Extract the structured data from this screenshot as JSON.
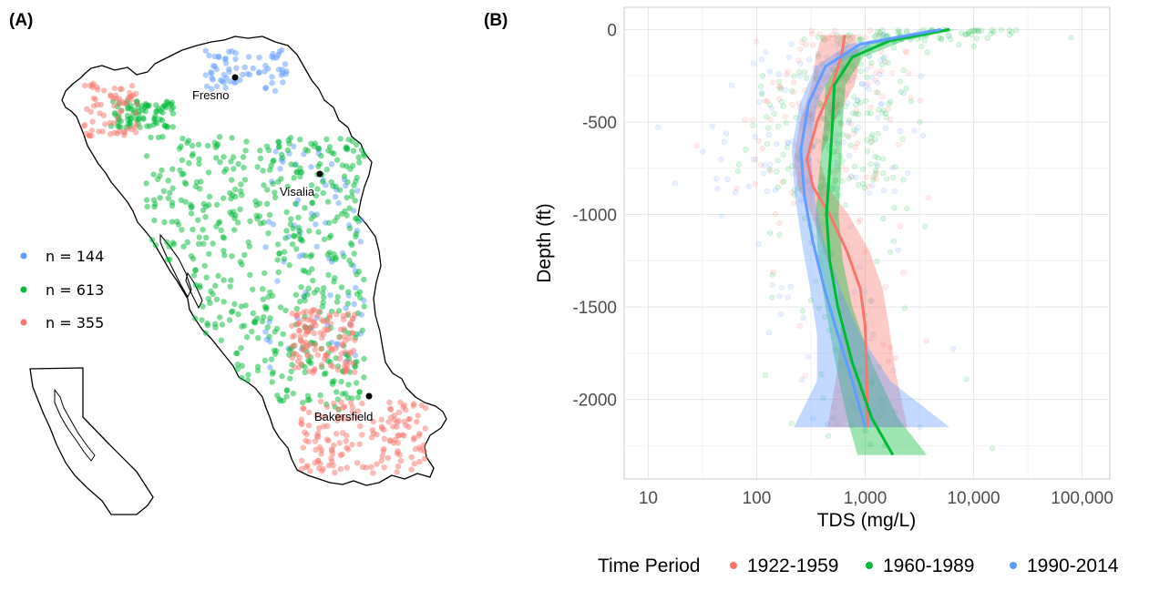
{
  "chart_data": [
    {
      "type": "scatter",
      "panel_label": "(A)",
      "cities": [
        "Fresno",
        "Visalia",
        "Bakersfield"
      ],
      "legend": {
        "placement": "left",
        "entries": [
          {
            "label": "n = 144",
            "color": "#619CFF"
          },
          {
            "label": "n = 613",
            "color": "#00BA38"
          },
          {
            "label": "n = 355",
            "color": "#F8766D"
          }
        ]
      },
      "inset": "California outline"
    },
    {
      "type": "scatter",
      "panel_label": "(B)",
      "xlabel": "TDS (mg/L)",
      "ylabel": "Depth (ft)",
      "x_scale": "log10",
      "xlim": [
        6,
        180000
      ],
      "ylim": [
        -2430,
        120
      ],
      "x_ticks": [
        10,
        100,
        1000,
        10000,
        100000
      ],
      "x_tick_labels": [
        "10",
        "100",
        "1,000",
        "10,000",
        "100,000"
      ],
      "y_ticks": [
        0,
        -500,
        -1000,
        -1500,
        -2000
      ],
      "y_tick_labels": [
        "0",
        "-500",
        "-1000",
        "-1500",
        "-2000"
      ],
      "grid": true,
      "legend": {
        "title": "Time Period",
        "placement": "bottom"
      },
      "series": [
        {
          "name": "1922-1959",
          "color": "#F8766D",
          "trend": [
            {
              "depth": -30,
              "tds": 650,
              "lo": 400,
              "hi": 800
            },
            {
              "depth": -150,
              "tds": 600,
              "lo": 350,
              "hi": 900
            },
            {
              "depth": -300,
              "tds": 500,
              "lo": 320,
              "hi": 800
            },
            {
              "depth": -500,
              "tds": 360,
              "lo": 250,
              "hi": 520
            },
            {
              "depth": -700,
              "tds": 290,
              "lo": 220,
              "hi": 380
            },
            {
              "depth": -850,
              "tds": 330,
              "lo": 240,
              "hi": 450
            },
            {
              "depth": -1000,
              "tds": 470,
              "lo": 320,
              "hi": 700
            },
            {
              "depth": -1200,
              "tds": 680,
              "lo": 420,
              "hi": 1100
            },
            {
              "depth": -1400,
              "tds": 900,
              "lo": 560,
              "hi": 1450
            },
            {
              "depth": -1600,
              "tds": 1000,
              "lo": 600,
              "hi": 1650
            },
            {
              "depth": -1850,
              "tds": 1030,
              "lo": 550,
              "hi": 1900
            },
            {
              "depth": -2150,
              "tds": 1060,
              "lo": 450,
              "hi": 2450
            }
          ]
        },
        {
          "name": "1960-1989",
          "color": "#00BA38",
          "trend": [
            {
              "depth": 0,
              "tds": 6000,
              "lo": 5000,
              "hi": 7000
            },
            {
              "depth": -60,
              "tds": 1700,
              "lo": 1200,
              "hi": 2300
            },
            {
              "depth": -150,
              "tds": 760,
              "lo": 600,
              "hi": 960
            },
            {
              "depth": -300,
              "tds": 520,
              "lo": 430,
              "hi": 660
            },
            {
              "depth": -500,
              "tds": 500,
              "lo": 420,
              "hi": 620
            },
            {
              "depth": -750,
              "tds": 470,
              "lo": 380,
              "hi": 600
            },
            {
              "depth": -1000,
              "tds": 440,
              "lo": 350,
              "hi": 570
            },
            {
              "depth": -1250,
              "tds": 470,
              "lo": 370,
              "hi": 620
            },
            {
              "depth": -1500,
              "tds": 560,
              "lo": 430,
              "hi": 760
            },
            {
              "depth": -1800,
              "tds": 760,
              "lo": 530,
              "hi": 1150
            },
            {
              "depth": -2100,
              "tds": 1150,
              "lo": 680,
              "hi": 2000
            },
            {
              "depth": -2300,
              "tds": 1800,
              "lo": 850,
              "hi": 3700
            }
          ]
        },
        {
          "name": "1990-2014",
          "color": "#619CFF",
          "trend": [
            {
              "depth": 0,
              "tds": 5000,
              "lo": 4000,
              "hi": 6000
            },
            {
              "depth": -80,
              "tds": 900,
              "lo": 700,
              "hi": 1150
            },
            {
              "depth": -200,
              "tds": 430,
              "lo": 350,
              "hi": 520
            },
            {
              "depth": -400,
              "tds": 300,
              "lo": 250,
              "hi": 360
            },
            {
              "depth": -650,
              "tds": 255,
              "lo": 210,
              "hi": 310
            },
            {
              "depth": -900,
              "tds": 275,
              "lo": 225,
              "hi": 340
            },
            {
              "depth": -1150,
              "tds": 330,
              "lo": 260,
              "hi": 420
            },
            {
              "depth": -1400,
              "tds": 420,
              "lo": 310,
              "hi": 590
            },
            {
              "depth": -1650,
              "tds": 560,
              "lo": 360,
              "hi": 900
            },
            {
              "depth": -1900,
              "tds": 760,
              "lo": 360,
              "hi": 1700
            },
            {
              "depth": -2150,
              "tds": 1000,
              "lo": 220,
              "hi": 6000
            }
          ]
        }
      ]
    }
  ]
}
